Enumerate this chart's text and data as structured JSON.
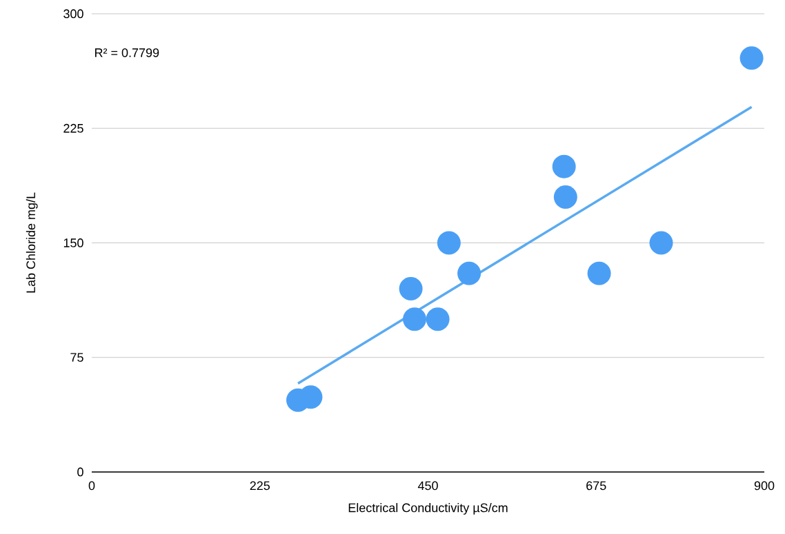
{
  "chart_data": {
    "type": "scatter",
    "xlabel": "Electrical Conductivity µS/cm",
    "ylabel": "Lab Chloride mg/L",
    "annotations": [
      "R² = 0.7799"
    ],
    "series": [
      {
        "marker": "circle",
        "color": "#4a9ff5",
        "x": [
          276,
          293,
          427,
          432,
          463,
          478,
          505,
          632,
          634,
          679,
          762,
          883
        ],
        "values": [
          47,
          49,
          120,
          100,
          100,
          150,
          130,
          200,
          180,
          130,
          150,
          271
        ]
      },
      {
        "type": "line",
        "marker": "none",
        "color": "#5aaaf0",
        "x": [
          276,
          883
        ],
        "values": [
          58,
          239
        ]
      }
    ],
    "xlim": [
      0,
      900
    ],
    "xticks": [
      0,
      225,
      450,
      675,
      900
    ],
    "ylim": [
      0,
      300
    ],
    "yticks": [
      0,
      75,
      150,
      225,
      300
    ],
    "grid": "y"
  }
}
